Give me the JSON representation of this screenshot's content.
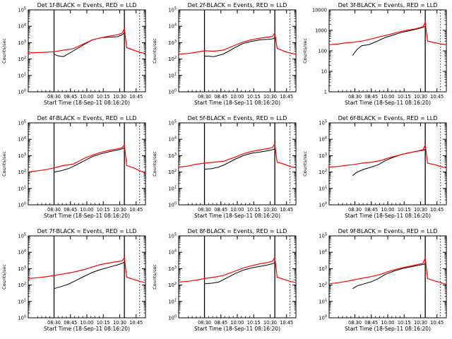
{
  "chart_data": [
    {
      "type": "line",
      "title": "Det 1f-BLACK = Events, RED = LLD",
      "xlabel": "Start Time (18-Sep-11 08:16:20)",
      "ylabel": "Counts/sec",
      "yscale": "log",
      "ylim": [
        1,
        100000
      ],
      "yticks": [
        {
          "b": "10",
          "e": "0"
        },
        {
          "b": "10",
          "e": "1"
        },
        {
          "b": "10",
          "e": "2"
        },
        {
          "b": "10",
          "e": "3"
        },
        {
          "b": "10",
          "e": "4"
        },
        {
          "b": "10",
          "e": "5"
        }
      ],
      "xticks": [
        "08:30",
        "08:45",
        "10:00",
        "10:15",
        "10:30",
        "10:45"
      ],
      "xlim": [
        0,
        1
      ],
      "series": [
        {
          "color": "#000000",
          "x": [
            0.22,
            0.25,
            0.3,
            0.38,
            0.48,
            0.55,
            0.62,
            0.7,
            0.76,
            0.8,
            0.82
          ],
          "y": [
            200,
            160,
            140,
            300,
            800,
            1500,
            2000,
            2200,
            2300,
            3000,
            4000
          ]
        },
        {
          "color": "#ff0000",
          "x": [
            0.0,
            0.08,
            0.15,
            0.22,
            0.3,
            0.38,
            0.48,
            0.55,
            0.62,
            0.7,
            0.76,
            0.8,
            0.82,
            0.84,
            0.9,
            0.95,
            1.0
          ],
          "y": [
            240,
            250,
            260,
            280,
            350,
            420,
            900,
            1500,
            2000,
            2600,
            3000,
            3800,
            7000,
            500,
            350,
            260,
            220
          ]
        }
      ],
      "markers": [
        0.22,
        0.82
      ]
    },
    {
      "type": "line",
      "title": "Det 2f-BLACK = Events, RED = LLD",
      "xlabel": "Start Time (18-Sep-11 08:16:20)",
      "ylabel": "Counts/sec",
      "yscale": "log",
      "ylim": [
        1,
        100000
      ],
      "yticks": [
        {
          "b": "10",
          "e": "0"
        },
        {
          "b": "10",
          "e": "1"
        },
        {
          "b": "10",
          "e": "2"
        },
        {
          "b": "10",
          "e": "3"
        },
        {
          "b": "10",
          "e": "4"
        },
        {
          "b": "10",
          "e": "5"
        }
      ],
      "xticks": [
        "08:30",
        "08:45",
        "10:00",
        "10:15",
        "10:30",
        "10:45"
      ],
      "xlim": [
        0,
        1
      ],
      "series": [
        {
          "color": "#000000",
          "x": [
            0.22,
            0.25,
            0.3,
            0.38,
            0.48,
            0.55,
            0.62,
            0.7,
            0.76,
            0.8,
            0.82
          ],
          "y": [
            150,
            150,
            140,
            200,
            500,
            900,
            1200,
            1500,
            1600,
            1700,
            2000
          ]
        },
        {
          "color": "#ff0000",
          "x": [
            0.0,
            0.08,
            0.15,
            0.22,
            0.3,
            0.38,
            0.48,
            0.55,
            0.62,
            0.7,
            0.76,
            0.8,
            0.82,
            0.84,
            0.9,
            0.95,
            1.0
          ],
          "y": [
            200,
            220,
            260,
            320,
            300,
            350,
            700,
            1100,
            1500,
            1900,
            2200,
            2400,
            4000,
            450,
            300,
            230,
            200
          ]
        }
      ],
      "markers": [
        0.22,
        0.82
      ]
    },
    {
      "type": "line",
      "title": "Det 3f-BLACK = Events, RED = LLD",
      "xlabel": "Start Time (18-Sep-11 08:16:20)",
      "ylabel": "Counts/sec",
      "yscale": "log",
      "ylim": [
        1,
        10000
      ],
      "yticks": [
        {
          "b": "1",
          "e": ""
        },
        {
          "b": "10",
          "e": ""
        },
        {
          "b": "100",
          "e": ""
        },
        {
          "b": "1000",
          "e": ""
        },
        {
          "b": "10000",
          "e": ""
        }
      ],
      "xticks": [
        "08:30",
        "08:45",
        "10:00",
        "10:15",
        "10:30",
        "10:45"
      ],
      "xlim": [
        0,
        1
      ],
      "series": [
        {
          "color": "#000000",
          "x": [
            0.2,
            0.24,
            0.28,
            0.34,
            0.4,
            0.48,
            0.55,
            0.62,
            0.7,
            0.76,
            0.8,
            0.82
          ],
          "y": [
            60,
            120,
            180,
            200,
            280,
            450,
            600,
            800,
            1000,
            1200,
            1400,
            1600
          ]
        },
        {
          "color": "#ff0000",
          "x": [
            0.0,
            0.08,
            0.15,
            0.2,
            0.28,
            0.36,
            0.44,
            0.5,
            0.58,
            0.66,
            0.74,
            0.8,
            0.82,
            0.84,
            0.9,
            0.95,
            1.0
          ],
          "y": [
            200,
            220,
            250,
            260,
            300,
            380,
            500,
            600,
            800,
            1000,
            1200,
            1500,
            2500,
            300,
            250,
            220,
            200
          ]
        }
      ],
      "markers": [
        0.82
      ]
    },
    {
      "type": "line",
      "title": "Det 4f-BLACK = Events, RED = LLD",
      "xlabel": "Start Time (18-Sep-11 08:16:20)",
      "ylabel": "Counts/sec",
      "yscale": "log",
      "ylim": [
        1,
        100000
      ],
      "yticks": [
        {
          "b": "10",
          "e": "0"
        },
        {
          "b": "10",
          "e": "1"
        },
        {
          "b": "10",
          "e": "2"
        },
        {
          "b": "10",
          "e": "3"
        },
        {
          "b": "10",
          "e": "4"
        },
        {
          "b": "10",
          "e": "5"
        }
      ],
      "xticks": [
        "08:30",
        "08:45",
        "10:00",
        "10:15",
        "10:30",
        "10:45"
      ],
      "xlim": [
        0,
        1
      ],
      "series": [
        {
          "color": "#000000",
          "x": [
            0.22,
            0.28,
            0.34,
            0.4,
            0.48,
            0.55,
            0.62,
            0.7,
            0.76,
            0.8,
            0.82
          ],
          "y": [
            100,
            120,
            160,
            250,
            500,
            900,
            1300,
            1800,
            2200,
            2600,
            3000
          ]
        },
        {
          "color": "#ff0000",
          "x": [
            0.0,
            0.08,
            0.15,
            0.22,
            0.3,
            0.38,
            0.48,
            0.55,
            0.62,
            0.7,
            0.76,
            0.8,
            0.82,
            0.84,
            0.9,
            0.95,
            1.0
          ],
          "y": [
            100,
            120,
            140,
            180,
            250,
            300,
            700,
            1100,
            1600,
            2200,
            2600,
            3000,
            4500,
            250,
            180,
            120,
            90
          ]
        }
      ],
      "markers": [
        0.22,
        0.82
      ]
    },
    {
      "type": "line",
      "title": "Det 5f-BLACK = Events, RED = LLD",
      "xlabel": "Start Time (18-Sep-11 08:16:20)",
      "ylabel": "Counts/sec",
      "yscale": "log",
      "ylim": [
        1,
        100000
      ],
      "yticks": [
        {
          "b": "10",
          "e": "0"
        },
        {
          "b": "10",
          "e": "1"
        },
        {
          "b": "10",
          "e": "2"
        },
        {
          "b": "10",
          "e": "3"
        },
        {
          "b": "10",
          "e": "4"
        },
        {
          "b": "10",
          "e": "5"
        }
      ],
      "xticks": [
        "08:30",
        "08:45",
        "10:00",
        "10:15",
        "10:30",
        "10:45"
      ],
      "xlim": [
        0,
        1
      ],
      "series": [
        {
          "color": "#000000",
          "x": [
            0.22,
            0.28,
            0.34,
            0.4,
            0.48,
            0.55,
            0.62,
            0.7,
            0.76,
            0.8,
            0.82
          ],
          "y": [
            150,
            160,
            200,
            300,
            600,
            1000,
            1400,
            1700,
            2000,
            2300,
            2600
          ]
        },
        {
          "color": "#ff0000",
          "x": [
            0.0,
            0.08,
            0.15,
            0.22,
            0.3,
            0.38,
            0.48,
            0.55,
            0.62,
            0.7,
            0.76,
            0.8,
            0.82,
            0.84,
            0.9,
            0.95,
            1.0
          ],
          "y": [
            200,
            230,
            300,
            350,
            400,
            450,
            800,
            1300,
            1800,
            2300,
            2700,
            3200,
            5000,
            400,
            300,
            220,
            180
          ]
        }
      ],
      "markers": [
        0.22,
        0.82
      ]
    },
    {
      "type": "line",
      "title": "Det 6f-BLACK = Events, RED = LLD",
      "xlabel": "Start Time (18-Sep-11 08:16:20)",
      "ylabel": "Counts/sec",
      "yscale": "log",
      "ylim": [
        1,
        100000
      ],
      "yticks": [
        {
          "b": "10",
          "e": "0"
        },
        {
          "b": "10",
          "e": "1"
        },
        {
          "b": "10",
          "e": "2"
        },
        {
          "b": "10",
          "e": "3"
        },
        {
          "b": "10",
          "e": "4"
        },
        {
          "b": "10",
          "e": "5"
        }
      ],
      "xticks": [
        "08:30",
        "08:45",
        "10:00",
        "10:15",
        "10:30",
        "10:45"
      ],
      "xlim": [
        0,
        1
      ],
      "series": [
        {
          "color": "#000000",
          "x": [
            0.2,
            0.24,
            0.3,
            0.36,
            0.42,
            0.48,
            0.55,
            0.62,
            0.7,
            0.76,
            0.8,
            0.82
          ],
          "y": [
            60,
            100,
            150,
            200,
            280,
            500,
            800,
            1200,
            1600,
            1900,
            2100,
            2400
          ]
        },
        {
          "color": "#ff0000",
          "x": [
            0.0,
            0.08,
            0.15,
            0.2,
            0.28,
            0.36,
            0.44,
            0.5,
            0.58,
            0.66,
            0.74,
            0.8,
            0.82,
            0.84,
            0.9,
            0.95,
            1.0
          ],
          "y": [
            200,
            220,
            260,
            280,
            350,
            400,
            500,
            700,
            1000,
            1400,
            1800,
            2300,
            4500,
            350,
            280,
            220,
            180
          ]
        }
      ],
      "markers": [
        0.82
      ]
    },
    {
      "type": "line",
      "title": "Det 7f-BLACK = Events, RED = LLD",
      "xlabel": "Start Time (18-Sep-11 08:16:20)",
      "ylabel": "Counts/sec",
      "yscale": "log",
      "ylim": [
        1,
        100000
      ],
      "yticks": [
        {
          "b": "10",
          "e": "0"
        },
        {
          "b": "10",
          "e": "1"
        },
        {
          "b": "10",
          "e": "2"
        },
        {
          "b": "10",
          "e": "3"
        },
        {
          "b": "10",
          "e": "4"
        },
        {
          "b": "10",
          "e": "5"
        }
      ],
      "xticks": [
        "08:30",
        "08:45",
        "10:00",
        "10:15",
        "10:30",
        "10:45"
      ],
      "xlim": [
        0,
        1
      ],
      "series": [
        {
          "color": "#000000",
          "x": [
            0.22,
            0.28,
            0.34,
            0.4,
            0.48,
            0.55,
            0.62,
            0.7,
            0.76,
            0.8,
            0.82
          ],
          "y": [
            60,
            80,
            110,
            180,
            350,
            600,
            900,
            1300,
            1700,
            2100,
            2500
          ]
        },
        {
          "color": "#ff0000",
          "x": [
            0.0,
            0.08,
            0.15,
            0.22,
            0.3,
            0.38,
            0.48,
            0.55,
            0.62,
            0.7,
            0.76,
            0.8,
            0.82,
            0.84,
            0.9,
            0.95,
            1.0
          ],
          "y": [
            250,
            280,
            320,
            380,
            480,
            600,
            900,
            1300,
            1800,
            2300,
            2700,
            3000,
            4500,
            300,
            220,
            170,
            140
          ]
        }
      ],
      "markers": [
        0.22,
        0.82
      ]
    },
    {
      "type": "line",
      "title": "Det 8f-BLACK = Events, RED = LLD",
      "xlabel": "Start Time (18-Sep-11 08:16:20)",
      "ylabel": "Counts/sec",
      "yscale": "log",
      "ylim": [
        1,
        100000
      ],
      "yticks": [
        {
          "b": "10",
          "e": "0"
        },
        {
          "b": "10",
          "e": "1"
        },
        {
          "b": "10",
          "e": "2"
        },
        {
          "b": "10",
          "e": "3"
        },
        {
          "b": "10",
          "e": "4"
        },
        {
          "b": "10",
          "e": "5"
        }
      ],
      "xticks": [
        "08:30",
        "08:45",
        "10:00",
        "10:15",
        "10:30",
        "10:45"
      ],
      "xlim": [
        0,
        1
      ],
      "series": [
        {
          "color": "#000000",
          "x": [
            0.22,
            0.28,
            0.34,
            0.4,
            0.48,
            0.55,
            0.62,
            0.7,
            0.76,
            0.8,
            0.82
          ],
          "y": [
            120,
            130,
            150,
            250,
            500,
            800,
            1100,
            1400,
            1700,
            2000,
            2300
          ]
        },
        {
          "color": "#ff0000",
          "x": [
            0.0,
            0.08,
            0.15,
            0.22,
            0.3,
            0.38,
            0.48,
            0.55,
            0.62,
            0.7,
            0.76,
            0.8,
            0.82,
            0.84,
            0.9,
            0.95,
            1.0
          ],
          "y": [
            150,
            170,
            200,
            250,
            300,
            380,
            700,
            1100,
            1500,
            2000,
            2400,
            2800,
            5000,
            300,
            220,
            170,
            140
          ]
        }
      ],
      "markers": [
        0.22,
        0.82
      ]
    },
    {
      "type": "line",
      "title": "Det 9f-BLACK = Events, RED = LLD",
      "xlabel": "Start Time (18-Sep-11 08:16:20)",
      "ylabel": "",
      "yscale": "log",
      "ylim": [
        1,
        100000
      ],
      "yticks": [
        {
          "b": "10",
          "e": "0"
        },
        {
          "b": "10",
          "e": "1"
        },
        {
          "b": "10",
          "e": "2"
        },
        {
          "b": "10",
          "e": "3"
        },
        {
          "b": "10",
          "e": "4"
        },
        {
          "b": "10",
          "e": "5"
        }
      ],
      "xticks": [
        "08:30",
        "08:45",
        "10:00",
        "10:15",
        "10:30",
        "10:45"
      ],
      "xlim": [
        0,
        1
      ],
      "series": [
        {
          "color": "#000000",
          "x": [
            0.2,
            0.24,
            0.3,
            0.36,
            0.42,
            0.48,
            0.55,
            0.62,
            0.7,
            0.76,
            0.8,
            0.82
          ],
          "y": [
            60,
            90,
            120,
            160,
            250,
            450,
            700,
            1000,
            1300,
            1600,
            1800,
            2000
          ]
        },
        {
          "color": "#ff0000",
          "x": [
            0.0,
            0.08,
            0.15,
            0.2,
            0.28,
            0.36,
            0.44,
            0.5,
            0.58,
            0.66,
            0.74,
            0.8,
            0.82,
            0.84,
            0.9,
            0.95,
            1.0
          ],
          "y": [
            120,
            140,
            170,
            200,
            260,
            330,
            450,
            650,
            950,
            1300,
            1700,
            2100,
            4500,
            250,
            180,
            140,
            110
          ]
        }
      ],
      "markers": [
        0.82
      ]
    }
  ]
}
